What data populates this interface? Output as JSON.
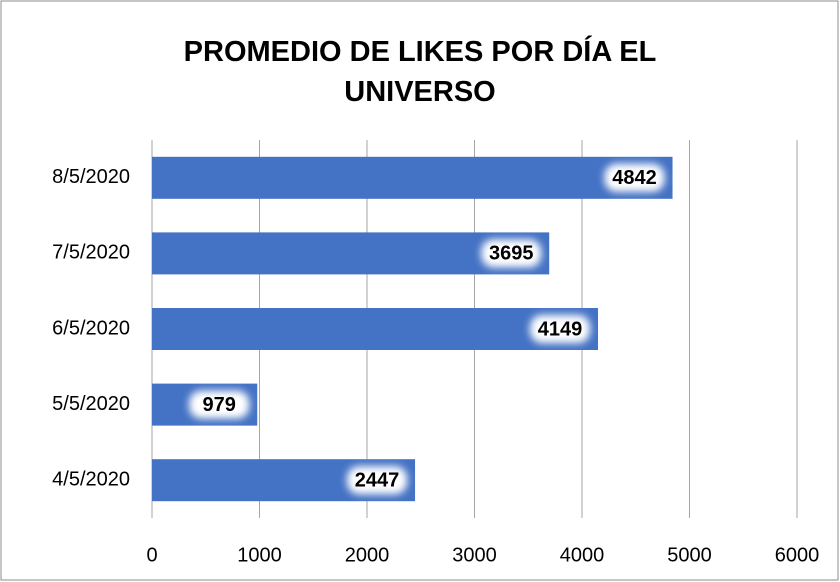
{
  "chart_data": {
    "type": "bar",
    "orientation": "horizontal",
    "title": "PROMEDIO DE LIKES POR DÍA EL UNIVERSO",
    "categories": [
      "4/5/2020",
      "5/5/2020",
      "6/5/2020",
      "7/5/2020",
      "8/5/2020"
    ],
    "values": [
      2447,
      979,
      4149,
      3695,
      4842
    ],
    "color": "#4472c4",
    "xlim": [
      0,
      6000
    ],
    "xticks": [
      0,
      1000,
      2000,
      3000,
      4000,
      5000,
      6000
    ],
    "grid": true
  }
}
